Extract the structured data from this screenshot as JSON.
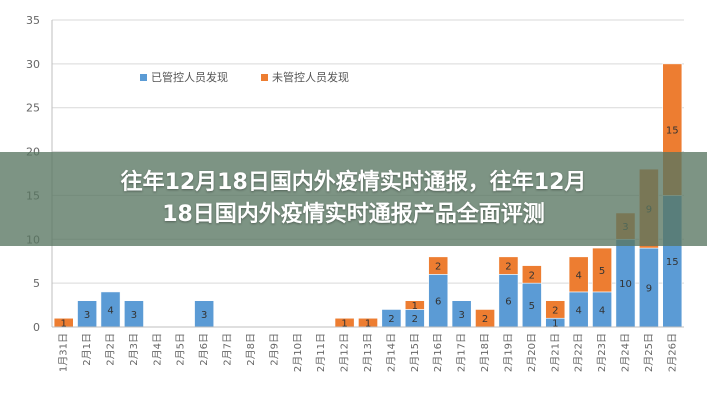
{
  "banner": {
    "line1": "往年12月18日国内外疫情实时通报，往年12月",
    "line2": "18日国内外疫情实时通报产品全面评测"
  },
  "colors": {
    "controlled": "#5b9bd5",
    "uncontrolled": "#ed7d31",
    "grid": "#d9d9d9",
    "axis": "#bfbfbf"
  },
  "chart_data": {
    "type": "bar",
    "stacked": true,
    "categories": [
      "1月31日",
      "2月1日",
      "2月2日",
      "2月3日",
      "2月4日",
      "2月5日",
      "2月6日",
      "2月7日",
      "2月8日",
      "2月9日",
      "2月10日",
      "2月11日",
      "2月12日",
      "2月13日",
      "2月14日",
      "2月15日",
      "2月16日",
      "2月17日",
      "2月18日",
      "2月19日",
      "2月20日",
      "2月21日",
      "2月22日",
      "2月23日",
      "2月24日",
      "2月25日",
      "2月26日"
    ],
    "series": [
      {
        "name": "已管控人员发现",
        "color": "#5b9bd5",
        "values": [
          0,
          3,
          4,
          3,
          0,
          0,
          3,
          0,
          0,
          0,
          0,
          0,
          0,
          0,
          2,
          2,
          6,
          3,
          0,
          6,
          5,
          1,
          4,
          4,
          10,
          9,
          15
        ]
      },
      {
        "name": "未管控人员发现",
        "color": "#ed7d31",
        "values": [
          1,
          0,
          0,
          0,
          0,
          0,
          0,
          0,
          0,
          0,
          0,
          0,
          1,
          1,
          0,
          1,
          2,
          0,
          2,
          2,
          2,
          2,
          4,
          5,
          3,
          9,
          15
        ]
      }
    ],
    "yticks": [
      0,
      5,
      10,
      15,
      20,
      25,
      30,
      35
    ],
    "ylim": [
      0,
      35
    ],
    "grid": true,
    "legend": "top-left"
  }
}
